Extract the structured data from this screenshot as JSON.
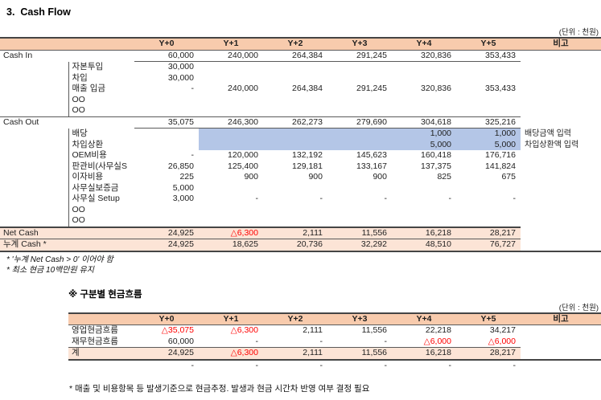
{
  "meta": {
    "title": "3.  Cash Flow"
  },
  "colors": {
    "header_fill": "#F8CBAD",
    "total_row_fill": "#FCE4D6",
    "input_cell_fill": "#B4C6E7",
    "negative_text": "#FF0000"
  },
  "table1": {
    "unit_note": "(단위 : 천원)",
    "columns": [
      "Y+0",
      "Y+1",
      "Y+2",
      "Y+3",
      "Y+4",
      "Y+5"
    ],
    "remark_header": "비고",
    "cash_in": {
      "label": "Cash In",
      "totals": [
        "60,000",
        "240,000",
        "264,384",
        "291,245",
        "320,836",
        "353,433"
      ],
      "rows": [
        {
          "label": "자본투입",
          "values": [
            "30,000",
            "",
            "",
            "",
            "",
            ""
          ],
          "remark": ""
        },
        {
          "label": "차입",
          "values": [
            "30,000",
            "",
            "",
            "",
            "",
            ""
          ],
          "remark": ""
        },
        {
          "label": "매출 입금",
          "values": [
            "-",
            "240,000",
            "264,384",
            "291,245",
            "320,836",
            "353,433"
          ],
          "remark": ""
        },
        {
          "label": "OO",
          "values": [
            "",
            "",
            "",
            "",
            "",
            ""
          ],
          "remark": ""
        },
        {
          "label": "OO",
          "values": [
            "",
            "",
            "",
            "",
            "",
            ""
          ],
          "remark": ""
        }
      ]
    },
    "cash_out": {
      "label": "Cash Out",
      "totals": [
        "35,075",
        "246,300",
        "262,273",
        "279,690",
        "304,618",
        "325,216"
      ],
      "rows": [
        {
          "label": "배당",
          "values": [
            "",
            "",
            "",
            "",
            "1,000",
            "1,000"
          ],
          "remark": "배당금액 입력",
          "highlight": true
        },
        {
          "label": "차입상환",
          "values": [
            "",
            "",
            "",
            "",
            "5,000",
            "5,000"
          ],
          "remark": "차입상환액 입력",
          "highlight": true
        },
        {
          "label": "OEM비용",
          "values": [
            "-",
            "120,000",
            "132,192",
            "145,623",
            "160,418",
            "176,716"
          ],
          "remark": ""
        },
        {
          "label": "판관비(사무실S",
          "values": [
            "26,850",
            "125,400",
            "129,181",
            "133,167",
            "137,375",
            "141,824"
          ],
          "remark": ""
        },
        {
          "label": "이자비용",
          "values": [
            "225",
            "900",
            "900",
            "900",
            "825",
            "675"
          ],
          "remark": ""
        },
        {
          "label": "사무실보증금",
          "values": [
            "5,000",
            "",
            "",
            "",
            "",
            ""
          ],
          "remark": ""
        },
        {
          "label": "사무실 Setup",
          "values": [
            "3,000",
            "-",
            "-",
            "-",
            "-",
            "-"
          ],
          "remark": ""
        },
        {
          "label": "OO",
          "values": [
            "",
            "",
            "",
            "",
            "",
            ""
          ],
          "remark": ""
        },
        {
          "label": "OO",
          "values": [
            "",
            "",
            "",
            "",
            "",
            ""
          ],
          "remark": ""
        }
      ]
    },
    "net_cash": {
      "label": "Net Cash",
      "values": [
        "24,925",
        "△6,300",
        "2,111",
        "11,556",
        "16,218",
        "28,217"
      ]
    },
    "cum_cash": {
      "label": "누계 Cash *",
      "values": [
        "24,925",
        "18,625",
        "20,736",
        "32,292",
        "48,510",
        "76,727"
      ]
    },
    "notes": [
      "* '누계 Net Cash > 0' 이어야 함",
      "* 최소 현금 10백만원 유지"
    ]
  },
  "table2": {
    "title": "※ 구분별 현금흐름",
    "unit_note": "(단위 : 천원)",
    "columns": [
      "Y+0",
      "Y+1",
      "Y+2",
      "Y+3",
      "Y+4",
      "Y+5"
    ],
    "remark_header": "비고",
    "rows": [
      {
        "label": "영업현금흐름",
        "values": [
          "△35,075",
          "△6,300",
          "2,111",
          "11,556",
          "22,218",
          "34,217"
        ],
        "remark": ""
      },
      {
        "label": "재무현금흐름",
        "values": [
          "60,000",
          "-",
          "-",
          "-",
          "△6,000",
          "△6,000"
        ],
        "remark": ""
      },
      {
        "label": "계",
        "values": [
          "24,925",
          "△6,300",
          "2,111",
          "11,556",
          "16,218",
          "28,217"
        ],
        "remark": "",
        "total": true
      },
      {
        "label": "",
        "values": [
          "-",
          "-",
          "-",
          "-",
          "-",
          "-"
        ],
        "remark": ""
      }
    ]
  },
  "footer_note": "* 매출 및 비용항목 등 발생기준으로 현금추정. 발생과 현금 시간차 반영 여부 결정 필요"
}
